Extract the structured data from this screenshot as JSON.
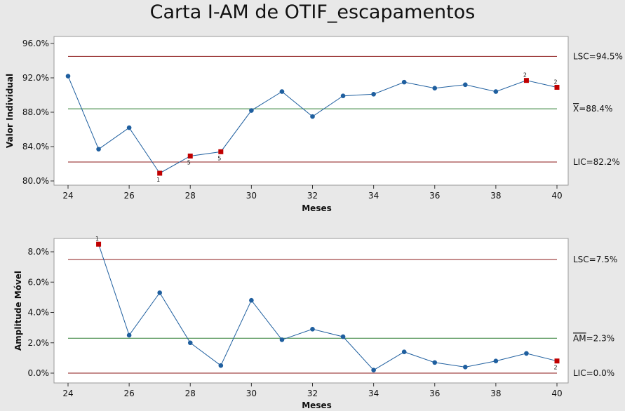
{
  "title": "Carta I-AM de OTIF_escapamentos",
  "colors": {
    "series": "#1f5f9f",
    "marker_normal": "#1f5f9f",
    "marker_flag": "#c00000",
    "limit": "#8b1a1a",
    "center": "#2e7d32",
    "plot_bg": "#ffffff",
    "page_bg": "#e8e8e8"
  },
  "chart_data": [
    {
      "type": "line",
      "title": "Carta I-AM de OTIF_escapamentos",
      "xlabel": "Meses",
      "ylabel": "Valor Individual",
      "xlim": [
        24,
        40
      ],
      "ylim": [
        80,
        96
      ],
      "x_ticks": [
        24,
        26,
        28,
        30,
        32,
        34,
        36,
        38,
        40
      ],
      "x_tick_labels": [
        "24",
        "26",
        "28",
        "30",
        "32",
        "34",
        "36",
        "38",
        "40"
      ],
      "y_ticks": [
        80,
        84,
        88,
        92,
        96
      ],
      "y_tick_labels": [
        "80.0%",
        "84.0%",
        "88.0%",
        "92.0%",
        "96.0%"
      ],
      "x": [
        24,
        25,
        26,
        27,
        28,
        29,
        30,
        31,
        32,
        33,
        34,
        35,
        36,
        37,
        38,
        39,
        40
      ],
      "values": [
        92.2,
        83.7,
        86.2,
        80.9,
        82.9,
        83.4,
        88.2,
        90.4,
        87.5,
        89.9,
        90.1,
        91.5,
        90.8,
        91.2,
        90.4,
        91.7,
        90.9
      ],
      "flags": [
        {
          "x": 27,
          "label": "1",
          "pos": "below"
        },
        {
          "x": 28,
          "label": "5",
          "pos": "below"
        },
        {
          "x": 29,
          "label": "5",
          "pos": "below"
        },
        {
          "x": 39,
          "label": "2",
          "pos": "above"
        },
        {
          "x": 40,
          "label": "2",
          "pos": "above"
        }
      ],
      "limits": [
        {
          "kind": "upper",
          "value": 94.5,
          "prefix": "LSC=",
          "text": "94.5%"
        },
        {
          "kind": "center",
          "value": 88.4,
          "prefix": "X",
          "text": "=88.4%",
          "overline": true
        },
        {
          "kind": "lower",
          "value": 82.2,
          "prefix": "LIC=",
          "text": "82.2%"
        }
      ],
      "grid": false
    },
    {
      "type": "line",
      "xlabel": "Meses",
      "ylabel": "Amplitude Móvel",
      "xlim": [
        24,
        40
      ],
      "ylim": [
        0,
        8
      ],
      "x_ticks": [
        24,
        26,
        28,
        30,
        32,
        34,
        36,
        38,
        40
      ],
      "x_tick_labels": [
        "24",
        "26",
        "28",
        "30",
        "32",
        "34",
        "36",
        "38",
        "40"
      ],
      "y_ticks": [
        0,
        2,
        4,
        6,
        8
      ],
      "y_tick_labels": [
        "0.0%",
        "2.0%",
        "4.0%",
        "6.0%",
        "8.0%"
      ],
      "x": [
        25,
        26,
        27,
        28,
        29,
        30,
        31,
        32,
        33,
        34,
        35,
        36,
        37,
        38,
        39,
        40
      ],
      "values": [
        8.5,
        2.5,
        5.3,
        2.0,
        0.5,
        4.8,
        2.2,
        2.9,
        2.4,
        0.2,
        1.4,
        0.7,
        0.4,
        0.8,
        1.3,
        0.8
      ],
      "flags": [
        {
          "x": 25,
          "label": "1",
          "pos": "above"
        },
        {
          "x": 40,
          "label": "2",
          "pos": "below"
        }
      ],
      "limits": [
        {
          "kind": "upper",
          "value": 7.5,
          "prefix": "LSC=",
          "text": "7.5%"
        },
        {
          "kind": "center",
          "value": 2.3,
          "prefix": "AM",
          "text": "=2.3%",
          "overline": true
        },
        {
          "kind": "lower",
          "value": 0.0,
          "prefix": "LIC=",
          "text": "0.0%"
        }
      ],
      "grid": false
    }
  ]
}
